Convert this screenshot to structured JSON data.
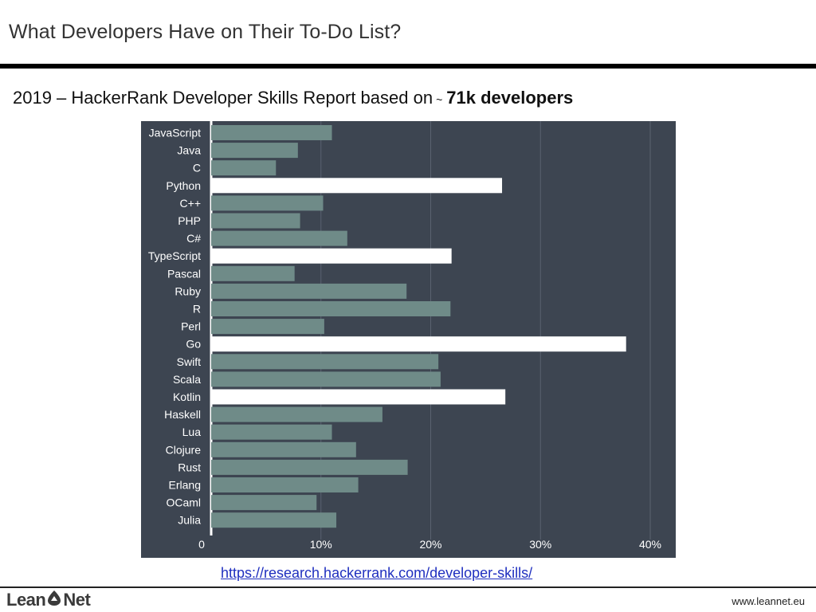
{
  "header": {
    "title": "What Developers Have on Their To-Do List?"
  },
  "subtitle": {
    "prefix": "2019 – HackerRank Developer Skills Report based on",
    "tilde": "~",
    "emphasis": "71k developers"
  },
  "colors": {
    "panel_background": "#3d4551",
    "bar_default": "#6f8b88",
    "bar_highlight": "#ffffff",
    "grid": "#5a6270",
    "text": "#ffffff"
  },
  "chart_data": {
    "type": "bar",
    "orientation": "horizontal",
    "categories": [
      "JavaScript",
      "Java",
      "C",
      "Python",
      "C++",
      "PHP",
      "C#",
      "TypeScript",
      "Pascal",
      "Ruby",
      "R",
      "Perl",
      "Go",
      "Swift",
      "Scala",
      "Kotlin",
      "Haskell",
      "Lua",
      "Clojure",
      "Rust",
      "Erlang",
      "OCaml",
      "Julia"
    ],
    "values": [
      11.0,
      7.9,
      5.9,
      26.5,
      10.2,
      8.1,
      12.4,
      21.9,
      7.6,
      17.8,
      21.8,
      10.3,
      37.8,
      20.7,
      20.9,
      26.8,
      15.6,
      11.0,
      13.2,
      17.9,
      13.4,
      9.6,
      11.4
    ],
    "highlighted": [
      "Python",
      "TypeScript",
      "Go",
      "Kotlin"
    ],
    "xlim": [
      0,
      40
    ],
    "xticks": [
      0,
      10,
      20,
      30,
      40
    ],
    "xtick_labels": [
      "0",
      "10%",
      "20%",
      "30%",
      "40%"
    ],
    "grid": true
  },
  "footer": {
    "source_url": "https://research.hackerrank.com/developer-skills/",
    "logo_left": "Lean",
    "logo_right": "Net",
    "logo_icon": "lean-net-logo-icon",
    "site": "www.leannet.eu"
  }
}
